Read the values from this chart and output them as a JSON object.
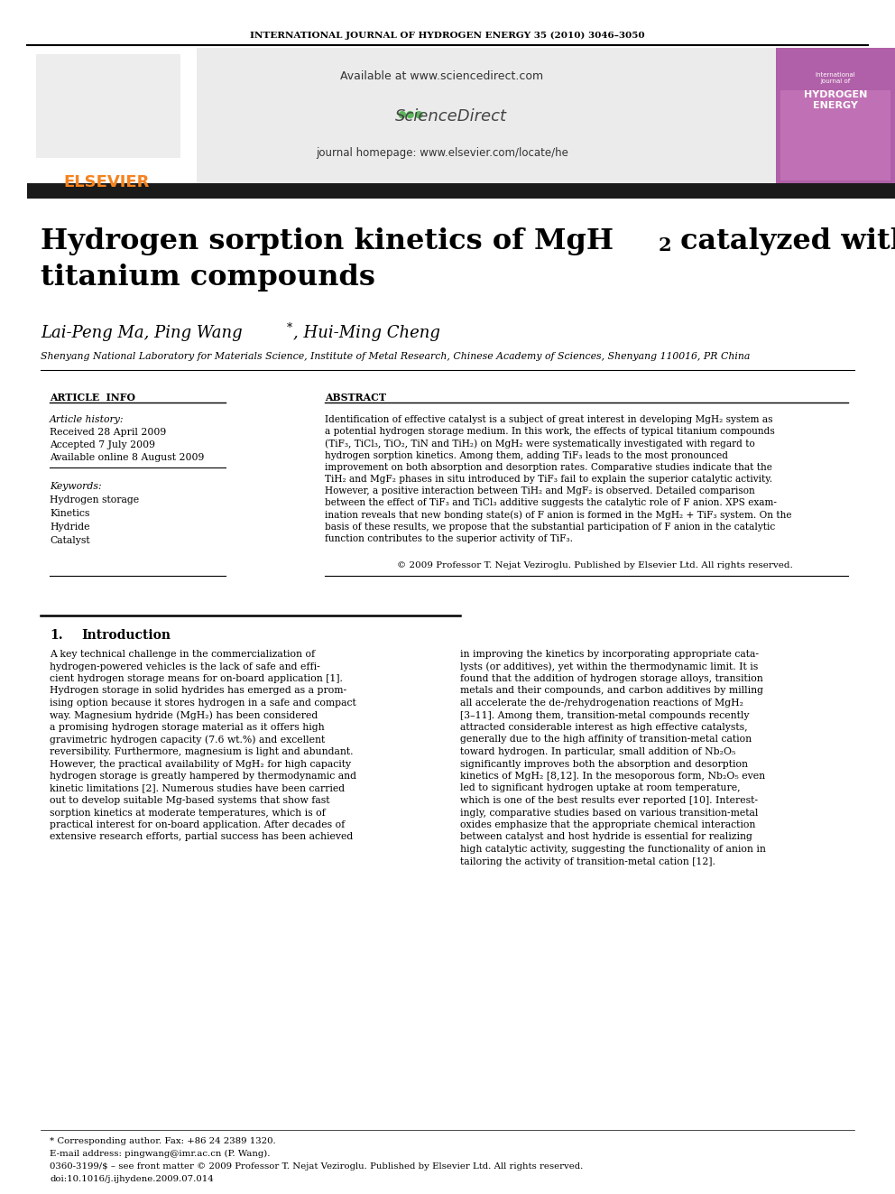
{
  "journal_header": "INTERNATIONAL JOURNAL OF HYDROGEN ENERGY 35 (2010) 3046–3050",
  "available_text": "Available at www.sciencedirect.com",
  "journal_homepage": "journal homepage: www.elsevier.com/locate/he",
  "section_article_info": "ARTICLE  INFO",
  "section_abstract": "ABSTRACT",
  "article_history_label": "Article history:",
  "received": "Received 28 April 2009",
  "accepted": "Accepted 7 July 2009",
  "available_online": "Available online 8 August 2009",
  "keywords_label": "Keywords:",
  "keywords": [
    "Hydrogen storage",
    "Kinetics",
    "Hydride",
    "Catalyst"
  ],
  "copyright": "© 2009 Professor T. Nejat Veziroglu. Published by Elsevier Ltd. All rights reserved.",
  "footer_star": "* Corresponding author. Fax: +86 24 2389 1320.",
  "footer_email": "E-mail address: pingwang@imr.ac.cn (P. Wang).",
  "footer_issn": "0360-3199/$ – see front matter © 2009 Professor T. Nejat Veziroglu. Published by Elsevier Ltd. All rights reserved.",
  "footer_doi": "doi:10.1016/j.ijhydene.2009.07.014",
  "affiliation": "Shenyang National Laboratory for Materials Science, Institute of Metal Research, Chinese Academy of Sciences, Shenyang 110016, PR China",
  "bg_color": "#ffffff",
  "header_bar_color": "#1a1a1a",
  "elsevier_color": "#f5821f",
  "banner_bg": "#ebebeb",
  "abstract_lines": [
    "Identification of effective catalyst is a subject of great interest in developing MgH₂ system as",
    "a potential hydrogen storage medium. In this work, the effects of typical titanium compounds",
    "(TiF₃, TiCl₃, TiO₂, TiN and TiH₂) on MgH₂ were systematically investigated with regard to",
    "hydrogen sorption kinetics. Among them, adding TiF₃ leads to the most pronounced",
    "improvement on both absorption and desorption rates. Comparative studies indicate that the",
    "TiH₂ and MgF₂ phases in situ introduced by TiF₃ fail to explain the superior catalytic activity.",
    "However, a positive interaction between TiH₂ and MgF₂ is observed. Detailed comparison",
    "between the effect of TiF₃ and TiCl₃ additive suggests the catalytic role of F anion. XPS exam-",
    "ination reveals that new bonding state(s) of F anion is formed in the MgH₂ + TiF₃ system. On the",
    "basis of these results, we propose that the substantial participation of F anion in the catalytic",
    "function contributes to the superior activity of TiF₃."
  ],
  "intro1_lines": [
    "A key technical challenge in the commercialization of",
    "hydrogen-powered vehicles is the lack of safe and effi-",
    "cient hydrogen storage means for on-board application [1].",
    "Hydrogen storage in solid hydrides has emerged as a prom-",
    "ising option because it stores hydrogen in a safe and compact",
    "way. Magnesium hydride (MgH₂) has been considered",
    "a promising hydrogen storage material as it offers high",
    "gravimetric hydrogen capacity (7.6 wt.%) and excellent",
    "reversibility. Furthermore, magnesium is light and abundant.",
    "However, the practical availability of MgH₂ for high capacity",
    "hydrogen storage is greatly hampered by thermodynamic and",
    "kinetic limitations [2]. Numerous studies have been carried",
    "out to develop suitable Mg-based systems that show fast",
    "sorption kinetics at moderate temperatures, which is of",
    "practical interest for on-board application. After decades of",
    "extensive research efforts, partial success has been achieved"
  ],
  "intro2_lines": [
    "in improving the kinetics by incorporating appropriate cata-",
    "lysts (or additives), yet within the thermodynamic limit. It is",
    "found that the addition of hydrogen storage alloys, transition",
    "metals and their compounds, and carbon additives by milling",
    "all accelerate the de-/rehydrogenation reactions of MgH₂",
    "[3–11]. Among them, transition-metal compounds recently",
    "attracted considerable interest as high effective catalysts,",
    "generally due to the high affinity of transition-metal cation",
    "toward hydrogen. In particular, small addition of Nb₂O₅",
    "significantly improves both the absorption and desorption",
    "kinetics of MgH₂ [8,12]. In the mesoporous form, Nb₂O₅ even",
    "led to significant hydrogen uptake at room temperature,",
    "which is one of the best results ever reported [10]. Interest-",
    "ingly, comparative studies based on various transition-metal",
    "oxides emphasize that the appropriate chemical interaction",
    "between catalyst and host hydride is essential for realizing",
    "high catalytic activity, suggesting the functionality of anion in",
    "tailoring the activity of transition-metal cation [12]."
  ]
}
